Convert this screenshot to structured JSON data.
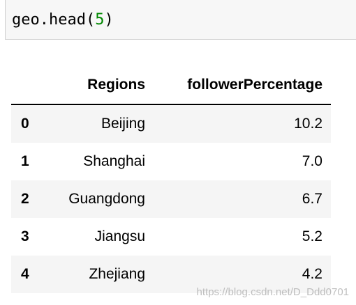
{
  "code_cell": {
    "code_prefix": "geo.head(",
    "code_arg": "5",
    "code_suffix": ")"
  },
  "table": {
    "columns": [
      "",
      "Regions",
      "followerPercentage"
    ],
    "rows": [
      {
        "index": "0",
        "region": "Beijing",
        "percentage": "10.2"
      },
      {
        "index": "1",
        "region": "Shanghai",
        "percentage": "7.0"
      },
      {
        "index": "2",
        "region": "Guangdong",
        "percentage": "6.7"
      },
      {
        "index": "3",
        "region": "Jiangsu",
        "percentage": "5.2"
      },
      {
        "index": "4",
        "region": "Zhejiang",
        "percentage": "4.2"
      }
    ]
  },
  "watermark": "https://blog.csdn.net/D_Ddd0701",
  "colors": {
    "code_number": "#008800",
    "cell_background": "#f7f7f7",
    "stripe": "#f5f5f5"
  }
}
